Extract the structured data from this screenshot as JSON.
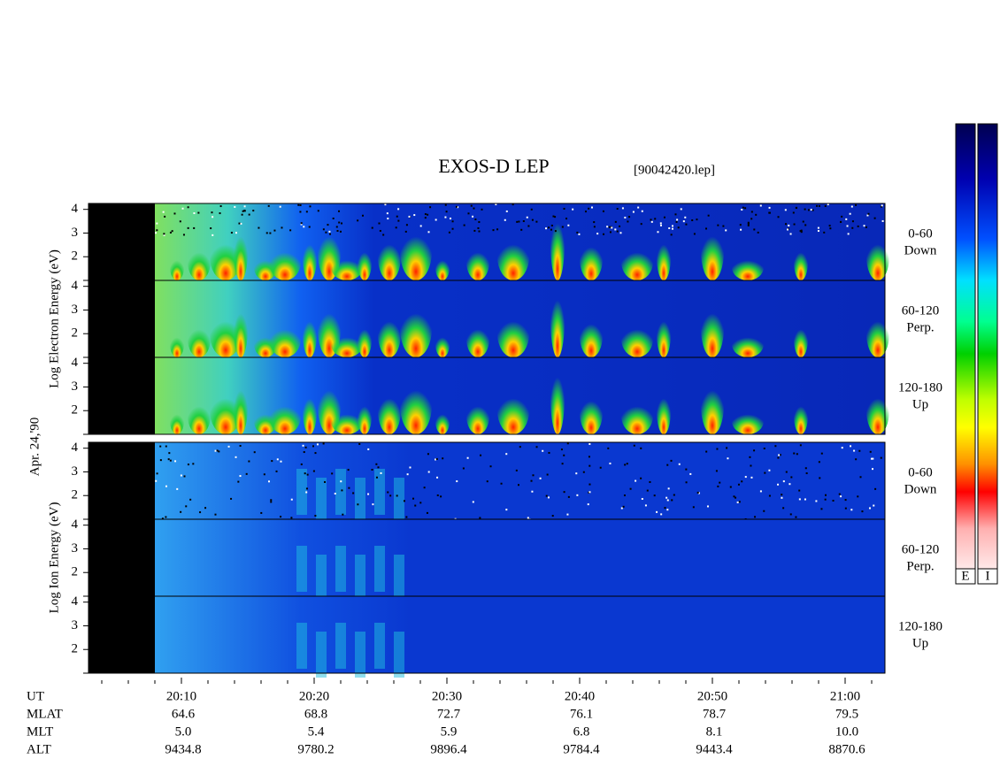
{
  "chart_data": {
    "type": "spectrogram",
    "title": "EXOS-D LEP",
    "subtitle": "[90042420.lep]",
    "date_label": "Apr. 24,'90",
    "groups": [
      {
        "ylabel": "Log Electron Energy (eV)",
        "panels": [
          {
            "angle": "0-60",
            "direction": "Down"
          },
          {
            "angle": "60-120",
            "direction": "Perp."
          },
          {
            "angle": "120-180",
            "direction": "Up"
          }
        ]
      },
      {
        "ylabel": "Log Ion Energy (eV)",
        "panels": [
          {
            "angle": "0-60",
            "direction": "Down"
          },
          {
            "angle": "60-120",
            "direction": "Perp."
          },
          {
            "angle": "120-180",
            "direction": "Up"
          }
        ]
      }
    ],
    "ylim": [
      1,
      4.25
    ],
    "yticks": [
      2,
      3,
      4
    ],
    "xlim": [
      "20:03",
      "21:03"
    ],
    "xticks": [
      "20:10",
      "20:20",
      "20:30",
      "20:40",
      "20:50",
      "21:00"
    ],
    "xminor_step": 2,
    "data_gap": [
      "20:03",
      "20:08"
    ],
    "colorbars": [
      "E",
      "I"
    ],
    "ephemeris": {
      "labels": [
        "UT",
        "MLAT",
        "MLT",
        "ALT"
      ],
      "rows": [
        [
          "64.6",
          "68.8",
          "72.7",
          "76.1",
          "78.7",
          "79.5"
        ],
        [
          "5.0",
          "5.4",
          "5.9",
          "6.8",
          "8.1",
          "10.0"
        ],
        [
          "9434.8",
          "9780.2",
          "9896.4",
          "9784.4",
          "9443.4",
          "8870.6"
        ]
      ]
    }
  }
}
